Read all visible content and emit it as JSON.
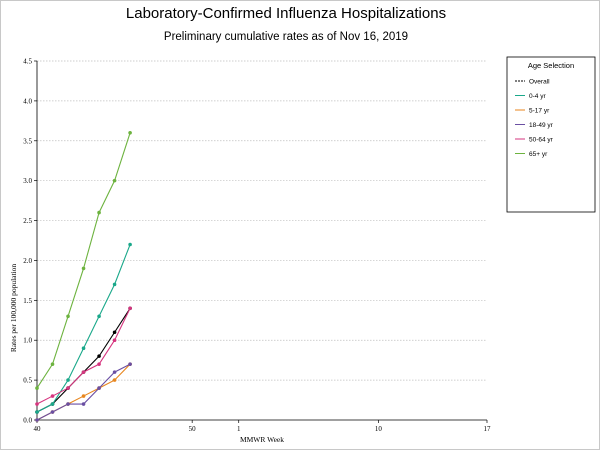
{
  "chart_data": {
    "type": "line",
    "title": "Laboratory-Confirmed Influenza Hospitalizations",
    "subtitle": "Preliminary cumulative rates as of Nov 16, 2019",
    "xlabel": "MMWR Week",
    "ylabel": "Rates per 100,000 population",
    "ylim": [
      0,
      4.5
    ],
    "yticks": [
      "0.0",
      "0.5",
      "1.0",
      "1.5",
      "2.0",
      "2.5",
      "3.0",
      "3.5",
      "4.0",
      "4.5"
    ],
    "xtick_labels": [
      "40",
      "50",
      "1",
      "10",
      "17"
    ],
    "grid": true,
    "legend_title": "Age Selection",
    "legend_position": "top-right",
    "series": [
      {
        "name": "Overall",
        "color": "#000000",
        "dashed": true,
        "values": [
          0.1,
          0.2,
          0.4,
          0.6,
          0.8,
          1.1,
          1.4
        ]
      },
      {
        "name": "0-4 yr",
        "color": "#1aa88a",
        "dashed": false,
        "values": [
          0.1,
          0.2,
          0.5,
          0.9,
          1.3,
          1.7,
          2.2
        ]
      },
      {
        "name": "5-17 yr",
        "color": "#e8861e",
        "dashed": false,
        "values": [
          0.0,
          0.1,
          0.2,
          0.3,
          0.4,
          0.5,
          0.7
        ]
      },
      {
        "name": "18-49 yr",
        "color": "#6a4fa3",
        "dashed": false,
        "values": [
          0.0,
          0.1,
          0.2,
          0.2,
          0.4,
          0.6,
          0.7
        ]
      },
      {
        "name": "50-64 yr",
        "color": "#d6357f",
        "dashed": false,
        "values": [
          0.2,
          0.3,
          0.4,
          0.6,
          0.7,
          1.0,
          1.4
        ]
      },
      {
        "name": "65+ yr",
        "color": "#6db33f",
        "dashed": false,
        "values": [
          0.4,
          0.7,
          1.3,
          1.9,
          2.6,
          3.0,
          3.6
        ]
      }
    ],
    "weeks_index": [
      40,
      41,
      42,
      43,
      44,
      45,
      46
    ]
  }
}
